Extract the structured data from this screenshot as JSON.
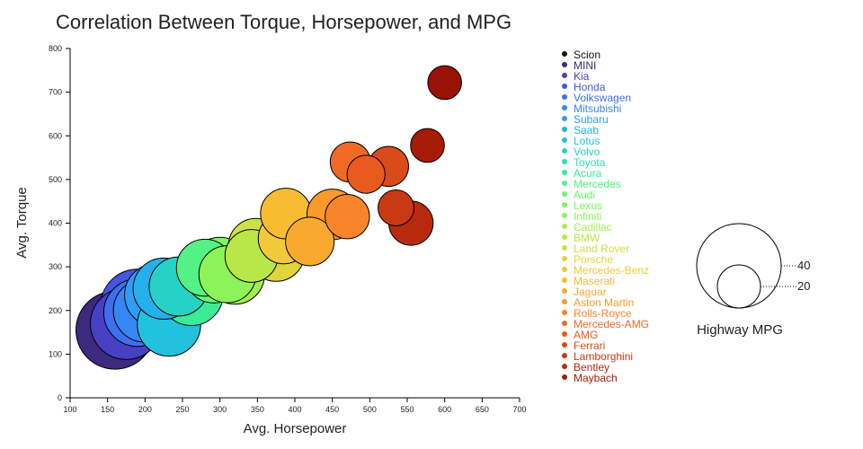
{
  "chart_data": {
    "type": "scatter",
    "title": "Correlation Between Torque, Horsepower, and MPG",
    "xlabel": "Avg. Horsepower",
    "ylabel": "Avg. Torque",
    "xlim": [
      100,
      700
    ],
    "ylim": [
      0,
      800
    ],
    "xticks": [
      100,
      150,
      200,
      250,
      300,
      350,
      400,
      450,
      500,
      550,
      600,
      650,
      700
    ],
    "yticks": [
      0,
      100,
      200,
      300,
      400,
      500,
      600,
      700,
      800
    ],
    "grid": false,
    "legend_position": "right",
    "size_legend": {
      "title": "Highway MPG",
      "entries": [
        {
          "label": "40",
          "value": 40
        },
        {
          "label": "20",
          "value": 20
        }
      ]
    },
    "series": [
      {
        "name": "Scion",
        "color": "#111111",
        "x": null,
        "y": null,
        "mpg": null
      },
      {
        "name": "MINI",
        "color": "#3b2a80",
        "x": 160,
        "y": 155,
        "mpg": 37
      },
      {
        "name": "Kia",
        "color": "#4641c4",
        "x": 175,
        "y": 170,
        "mpg": 34
      },
      {
        "name": "Honda",
        "color": "#4556e3",
        "x": 190,
        "y": 210,
        "mpg": 35
      },
      {
        "name": "Volkswagen",
        "color": "#3f6ff0",
        "x": 190,
        "y": 195,
        "mpg": 32
      },
      {
        "name": "Mitsubishi",
        "color": "#3686f5",
        "x": 200,
        "y": 200,
        "mpg": 30
      },
      {
        "name": "Subaru",
        "color": "#2e9df5",
        "x": 215,
        "y": 235,
        "mpg": 30
      },
      {
        "name": "Saab",
        "color": "#22b1ec",
        "x": 225,
        "y": 250,
        "mpg": 29
      },
      {
        "name": "Lotus",
        "color": "#21c3dc",
        "x": 232,
        "y": 168,
        "mpg": 30
      },
      {
        "name": "Volvo",
        "color": "#24d3c6",
        "x": 245,
        "y": 255,
        "mpg": 28
      },
      {
        "name": "Toyota",
        "color": "#2ce0ad",
        "x": 255,
        "y": 245,
        "mpg": 30
      },
      {
        "name": "Acura",
        "color": "#3beb98",
        "x": 262,
        "y": 238,
        "mpg": 30
      },
      {
        "name": "Mercedes",
        "color": "#54f284",
        "x": 280,
        "y": 298,
        "mpg": 27
      },
      {
        "name": "Audi",
        "color": "#6bf86d",
        "x": 292,
        "y": 285,
        "mpg": 28
      },
      {
        "name": "Lexus",
        "color": "#7bf760",
        "x": 300,
        "y": 300,
        "mpg": 28
      },
      {
        "name": "Infiniti",
        "color": "#8cf358",
        "x": 310,
        "y": 283,
        "mpg": 27
      },
      {
        "name": "Cadillac",
        "color": "#a3ee4e",
        "x": 320,
        "y": 282,
        "mpg": 28
      },
      {
        "name": "BMW",
        "color": "#b8e848",
        "x": 342,
        "y": 325,
        "mpg": 25
      },
      {
        "name": "Land Rover",
        "color": "#cfe047",
        "x": 348,
        "y": 348,
        "mpg": 26
      },
      {
        "name": "Porsche",
        "color": "#e2d43c",
        "x": 375,
        "y": 332,
        "mpg": 27
      },
      {
        "name": "Mercedes-Benz",
        "color": "#f1c93a",
        "x": 385,
        "y": 365,
        "mpg": 24
      },
      {
        "name": "Maserati",
        "color": "#f7bc32",
        "x": 388,
        "y": 422,
        "mpg": 24
      },
      {
        "name": "Jaguar",
        "color": "#f9aa2e",
        "x": 420,
        "y": 358,
        "mpg": 23
      },
      {
        "name": "Aston Martin",
        "color": "#fa9a2a",
        "x": 450,
        "y": 420,
        "mpg": 24
      },
      {
        "name": "Rolls-Royce",
        "color": "#f8852a",
        "x": 470,
        "y": 415,
        "mpg": 21
      },
      {
        "name": "Mercedes-AMG",
        "color": "#f06a25",
        "x": 474,
        "y": 540,
        "mpg": 19
      },
      {
        "name": "AMG",
        "color": "#e85a1e",
        "x": 495,
        "y": 512,
        "mpg": 18
      },
      {
        "name": "Ferrari",
        "color": "#da4b1a",
        "x": 525,
        "y": 530,
        "mpg": 19
      },
      {
        "name": "Lamborghini",
        "color": "#c93914",
        "x": 535,
        "y": 435,
        "mpg": 17
      },
      {
        "name": "Bentley",
        "color": "#b72a0e",
        "x": 555,
        "y": 400,
        "mpg": 21
      },
      {
        "name": "Maybach",
        "color": "#a61b08",
        "x": 577,
        "y": 578,
        "mpg": 16
      },
      {
        "name": "",
        "color": "#981205",
        "x": 600,
        "y": 722,
        "mpg": 16
      }
    ]
  }
}
